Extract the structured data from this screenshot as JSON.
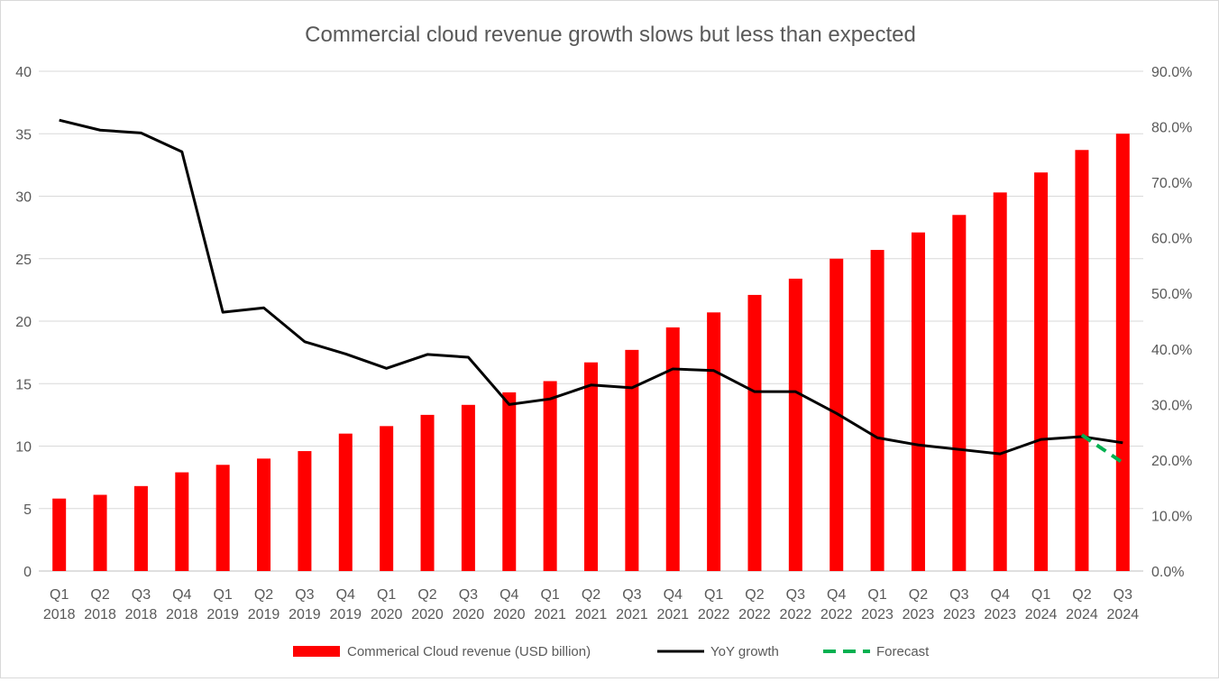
{
  "chart_data": {
    "type": "bar+line",
    "title": "Commercial cloud revenue growth slows but less than expected",
    "categories": [
      [
        "Q1",
        "2018"
      ],
      [
        "Q2",
        "2018"
      ],
      [
        "Q3",
        "2018"
      ],
      [
        "Q4",
        "2018"
      ],
      [
        "Q1",
        "2019"
      ],
      [
        "Q2",
        "2019"
      ],
      [
        "Q3",
        "2019"
      ],
      [
        "Q4",
        "2019"
      ],
      [
        "Q1",
        "2020"
      ],
      [
        "Q2",
        "2020"
      ],
      [
        "Q3",
        "2020"
      ],
      [
        "Q4",
        "2020"
      ],
      [
        "Q1",
        "2021"
      ],
      [
        "Q2",
        "2021"
      ],
      [
        "Q3",
        "2021"
      ],
      [
        "Q4",
        "2021"
      ],
      [
        "Q1",
        "2022"
      ],
      [
        "Q2",
        "2022"
      ],
      [
        "Q3",
        "2022"
      ],
      [
        "Q4",
        "2022"
      ],
      [
        "Q1",
        "2023"
      ],
      [
        "Q2",
        "2023"
      ],
      [
        "Q3",
        "2023"
      ],
      [
        "Q4",
        "2023"
      ],
      [
        "Q1",
        "2024"
      ],
      [
        "Q2",
        "2024"
      ],
      [
        "Q3",
        "2024"
      ]
    ],
    "left_axis": {
      "ylim": [
        0,
        40
      ],
      "ticks": [
        "0",
        "5",
        "10",
        "15",
        "20",
        "25",
        "30",
        "35",
        "40"
      ]
    },
    "right_axis": {
      "ylim": [
        0,
        90
      ],
      "ticks": [
        "0.0%",
        "10.0%",
        "20.0%",
        "30.0%",
        "40.0%",
        "50.0%",
        "60.0%",
        "70.0%",
        "80.0%",
        "90.0%"
      ]
    },
    "grid": true,
    "legend_position": "bottom",
    "series": [
      {
        "name": "Commerical Cloud revenue (USD billion)",
        "type": "bar",
        "axis": "left",
        "color": "#ff0000",
        "values": [
          5.8,
          6.1,
          6.8,
          7.9,
          8.5,
          9.0,
          9.6,
          11.0,
          11.6,
          12.5,
          13.3,
          14.3,
          15.2,
          16.7,
          17.7,
          19.5,
          20.7,
          22.1,
          23.4,
          25.0,
          25.7,
          27.1,
          28.5,
          30.3,
          31.9,
          33.7,
          35.0
        ]
      },
      {
        "name": "YoY growth",
        "type": "line",
        "axis": "right",
        "color": "#000000",
        "values": [
          81.2,
          79.4,
          78.9,
          75.5,
          46.6,
          47.4,
          41.3,
          39.1,
          36.5,
          39.0,
          38.5,
          30.0,
          31.0,
          33.5,
          33.0,
          36.4,
          36.1,
          32.3,
          32.3,
          28.4,
          24.0,
          22.7,
          21.9,
          21.1,
          23.7,
          24.2,
          23.1
        ]
      },
      {
        "name": "Forecast",
        "type": "line",
        "dashed": true,
        "axis": "right",
        "color": "#00b050",
        "points": [
          {
            "x": "Q2 2024",
            "y": 24.5
          },
          {
            "x": "Q3 2024",
            "y": 19.5
          }
        ]
      }
    ]
  }
}
